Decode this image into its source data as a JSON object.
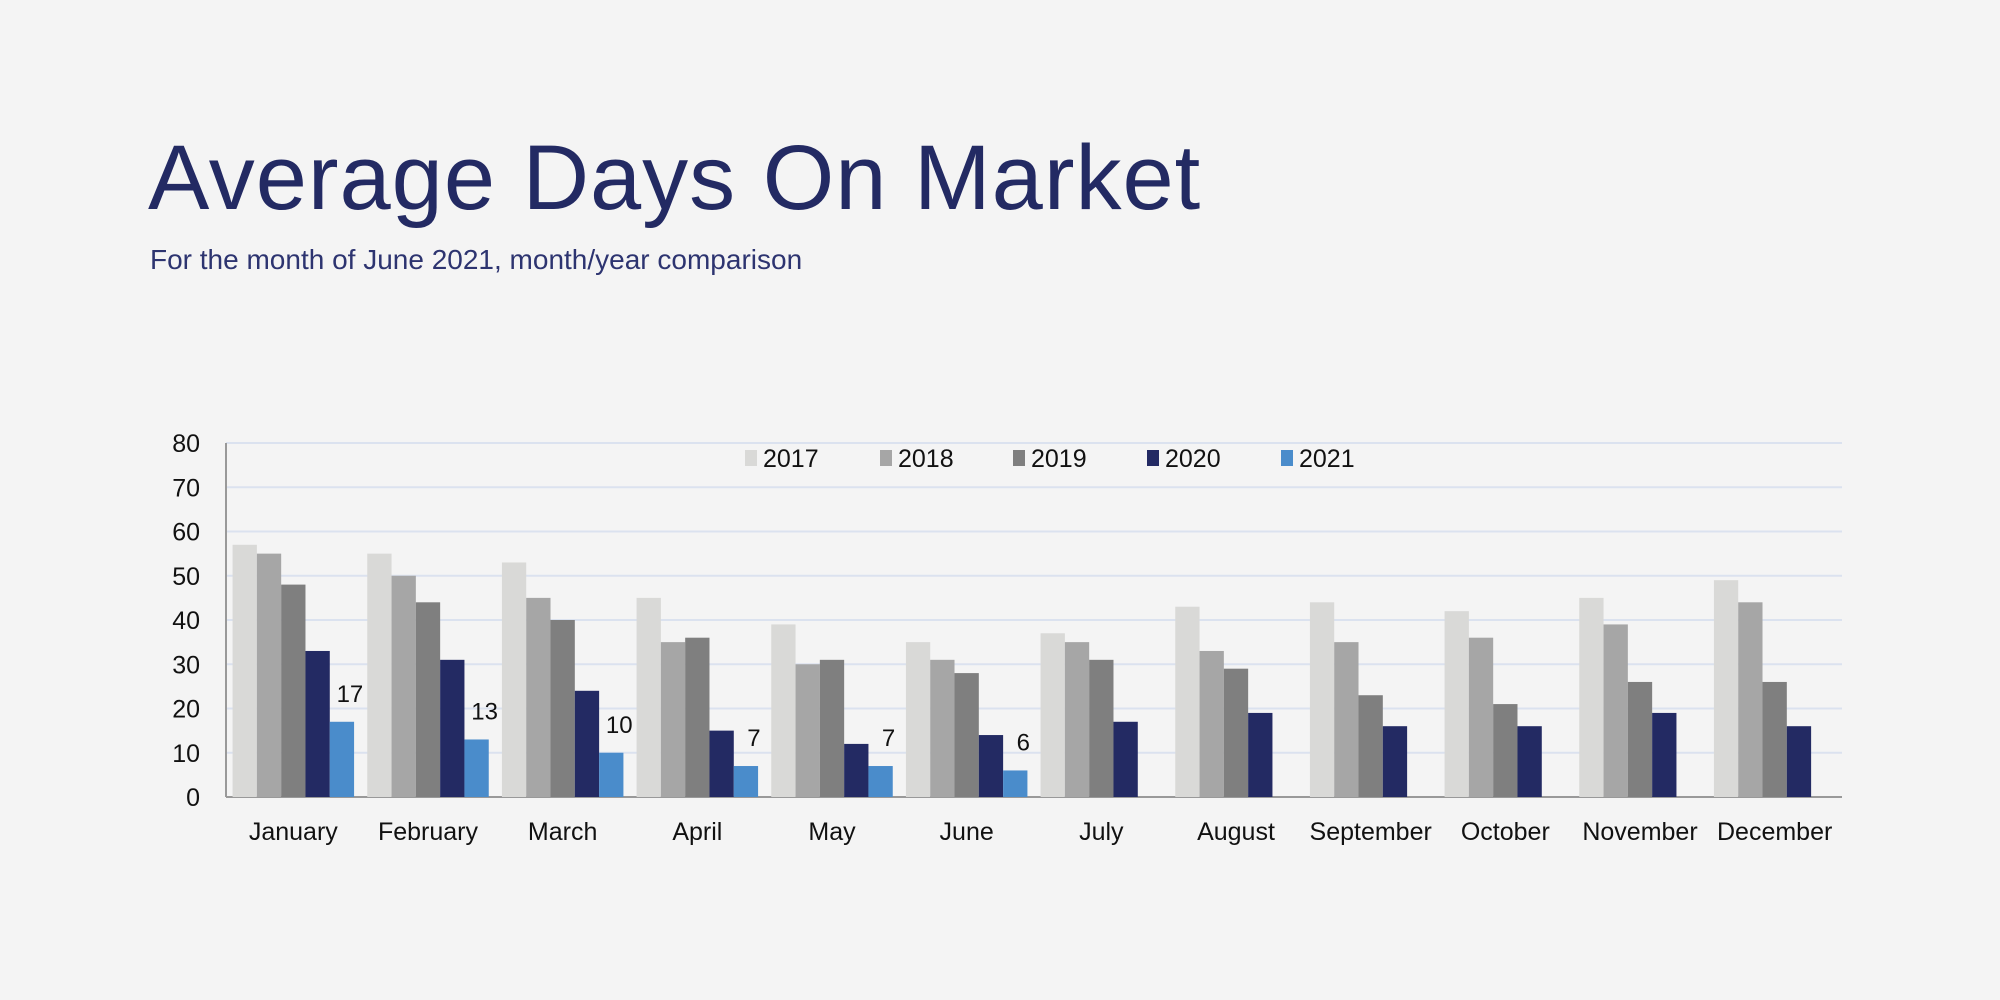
{
  "chart_data": {
    "type": "bar",
    "title": "Average Days On Market",
    "subtitle": "For the month of June 2021, month/year comparison",
    "xlabel": "",
    "ylabel": "",
    "ylim": [
      0,
      80
    ],
    "yticks": [
      0,
      10,
      20,
      30,
      40,
      50,
      60,
      70,
      80
    ],
    "grid": true,
    "legend_position": "top-center",
    "categories": [
      "January",
      "February",
      "March",
      "April",
      "May",
      "June",
      "July",
      "August",
      "September",
      "October",
      "November",
      "December"
    ],
    "series": [
      {
        "name": "2017",
        "color": "#d9d9d7",
        "values": [
          57,
          55,
          53,
          45,
          39,
          35,
          37,
          43,
          44,
          42,
          45,
          49
        ]
      },
      {
        "name": "2018",
        "color": "#a6a6a6",
        "values": [
          55,
          50,
          45,
          35,
          30,
          31,
          35,
          33,
          35,
          36,
          39,
          44
        ]
      },
      {
        "name": "2019",
        "color": "#7f7f7f",
        "values": [
          48,
          44,
          40,
          36,
          31,
          28,
          31,
          29,
          23,
          21,
          26,
          26
        ]
      },
      {
        "name": "2020",
        "color": "#232a63",
        "values": [
          33,
          31,
          24,
          15,
          12,
          14,
          17,
          19,
          16,
          16,
          19,
          16
        ]
      },
      {
        "name": "2021",
        "color": "#4a8ccb",
        "values": [
          17,
          13,
          10,
          7,
          7,
          6,
          null,
          null,
          null,
          null,
          null,
          null
        ],
        "data_labels": [
          "17",
          "13",
          "10",
          "7",
          "7",
          "6"
        ]
      }
    ]
  }
}
